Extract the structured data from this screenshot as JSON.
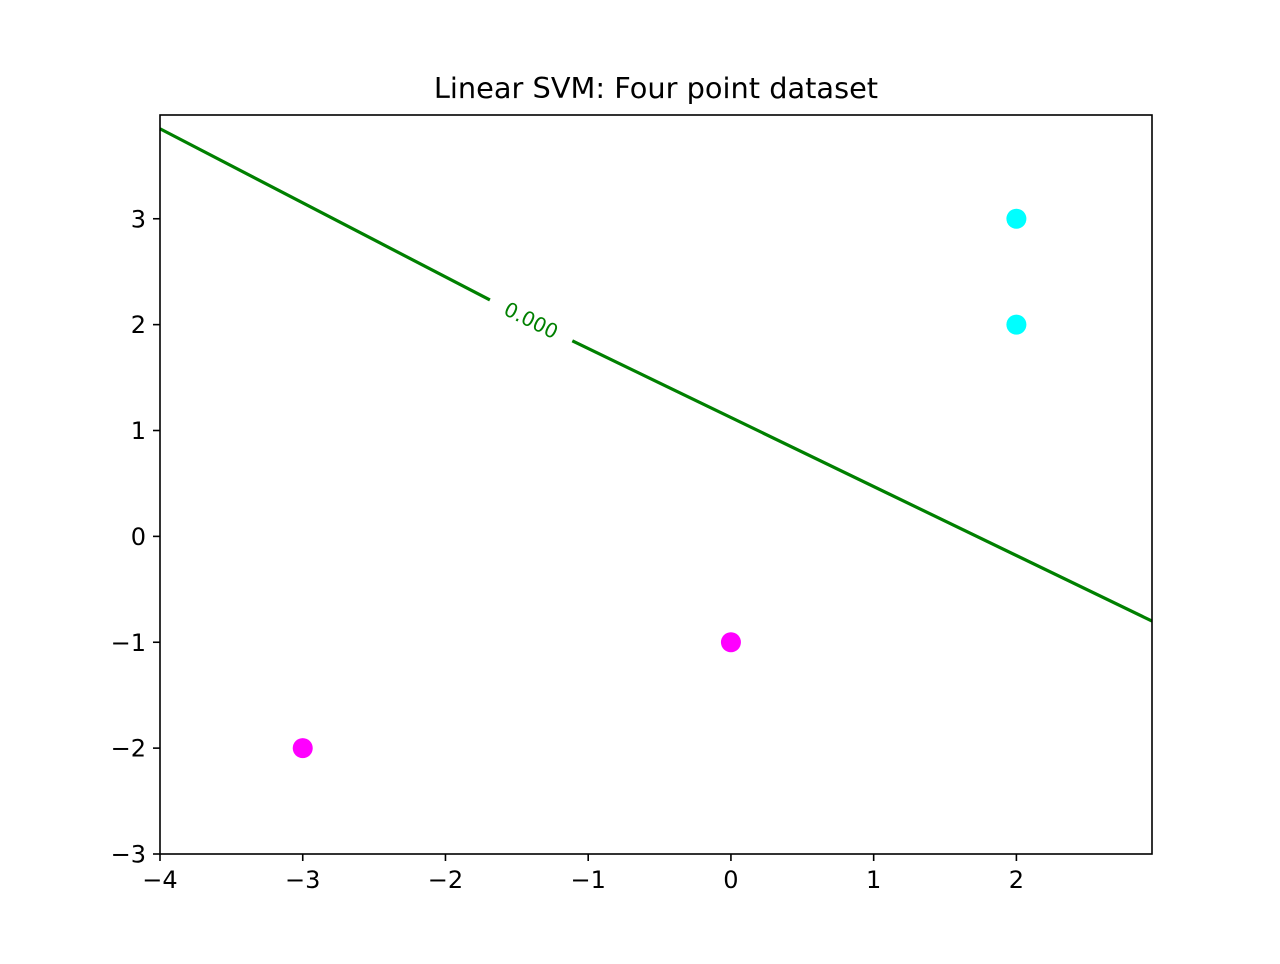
{
  "chart_data": {
    "type": "scatter",
    "title": "Linear SVM: Four point dataset",
    "xlabel": "",
    "ylabel": "",
    "xlim": [
      -4,
      2.95
    ],
    "ylim": [
      -3,
      3.98
    ],
    "x_ticks": [
      -4,
      -3,
      -2,
      -1,
      0,
      1,
      2
    ],
    "y_ticks": [
      -3,
      -2,
      -1,
      0,
      1,
      2,
      3
    ],
    "grid": false,
    "series": [
      {
        "color": "#ff00ff",
        "points": [
          {
            "x": -3,
            "y": -2
          },
          {
            "x": 0,
            "y": -1
          }
        ]
      },
      {
        "color": "#00ffff",
        "points": [
          {
            "x": 2,
            "y": 2
          },
          {
            "x": 2,
            "y": 3
          }
        ]
      }
    ],
    "decision_boundary": {
      "level_label": "0.000",
      "color": "#008000",
      "x": [
        -4,
        2.95
      ],
      "y": [
        3.85,
        -0.8
      ],
      "label_position": [
        -1.4,
        2.04
      ]
    }
  }
}
